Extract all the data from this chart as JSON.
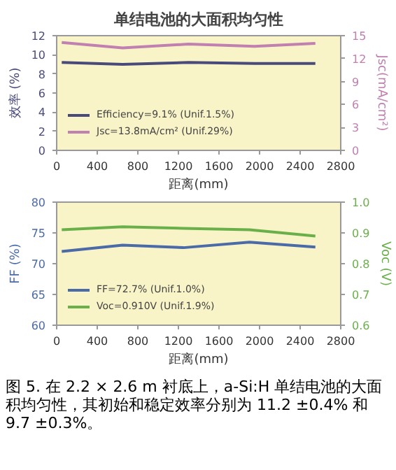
{
  "chart_data": [
    {
      "type": "line",
      "title": "单结电池的大面积均匀性",
      "xlabel": "距离(mm)",
      "ylabel": "效率 (%)",
      "y2label": "Jsc(mA/cm²)",
      "x": [
        50,
        650,
        1300,
        1950,
        2550
      ],
      "xlim": [
        0,
        2800
      ],
      "xticks": [
        0,
        400,
        800,
        1200,
        1600,
        2000,
        2400,
        2800
      ],
      "ylim": [
        0,
        12
      ],
      "yticks": [
        0,
        2,
        4,
        6,
        8,
        10,
        12
      ],
      "y2lim": [
        0,
        15
      ],
      "y2ticks": [
        0,
        3,
        6,
        9,
        12,
        15
      ],
      "legend": "bottom left",
      "grid": false,
      "series": [
        {
          "name": "Efficiency=9.1% (Unif.1.5%)",
          "color": "#4a4a7a",
          "values": [
            9.2,
            9.0,
            9.2,
            9.1,
            9.1
          ]
        },
        {
          "name": "Jsc=13.8mA/cm² (Unif.29%)",
          "color": "#c080b0",
          "axis": "y2",
          "values": [
            14.1,
            13.4,
            13.9,
            13.6,
            14.0
          ]
        }
      ]
    },
    {
      "type": "line",
      "xlabel": "距离(mm)",
      "ylabel": "FF (%)",
      "y2label": "Voc (V)",
      "x": [
        50,
        650,
        1250,
        1900,
        2550
      ],
      "xlim": [
        0,
        2800
      ],
      "xticks": [
        0,
        400,
        800,
        1200,
        1600,
        2000,
        2400,
        2800
      ],
      "ylim": [
        60,
        80
      ],
      "yticks": [
        60,
        65,
        70,
        75,
        80
      ],
      "y2lim": [
        0.6,
        1.0
      ],
      "y2ticks": [
        {
          "value": 0.6,
          "label": "0.6"
        },
        {
          "value": 0.7,
          "label": "0.7"
        },
        {
          "value": 0.8,
          "label": "0.8"
        },
        {
          "value": 0.9,
          "label": "0.9"
        },
        {
          "value": 1.0,
          "label": "1.0"
        }
      ],
      "legend": "bottom left",
      "grid": false,
      "annotations": [
        "图 5. 在 2.2 × 2.6 m 衬底上，a-Si:H 单结电池的大面积均匀性，其初始和稳定效率分别为 11.2 ±0.4% 和 9.7 ±0.3%。"
      ],
      "series": [
        {
          "name": "FF=72.7% (Unif.1.0%)",
          "color": "#4a6aa8",
          "values": [
            72.0,
            73.0,
            72.6,
            73.5,
            72.7
          ]
        },
        {
          "name": "Voc=0.910V (Unif.1.9%)",
          "color": "#6ab04a",
          "axis": "y2",
          "values": [
            0.91,
            0.92,
            0.915,
            0.91,
            0.89
          ]
        }
      ]
    }
  ]
}
